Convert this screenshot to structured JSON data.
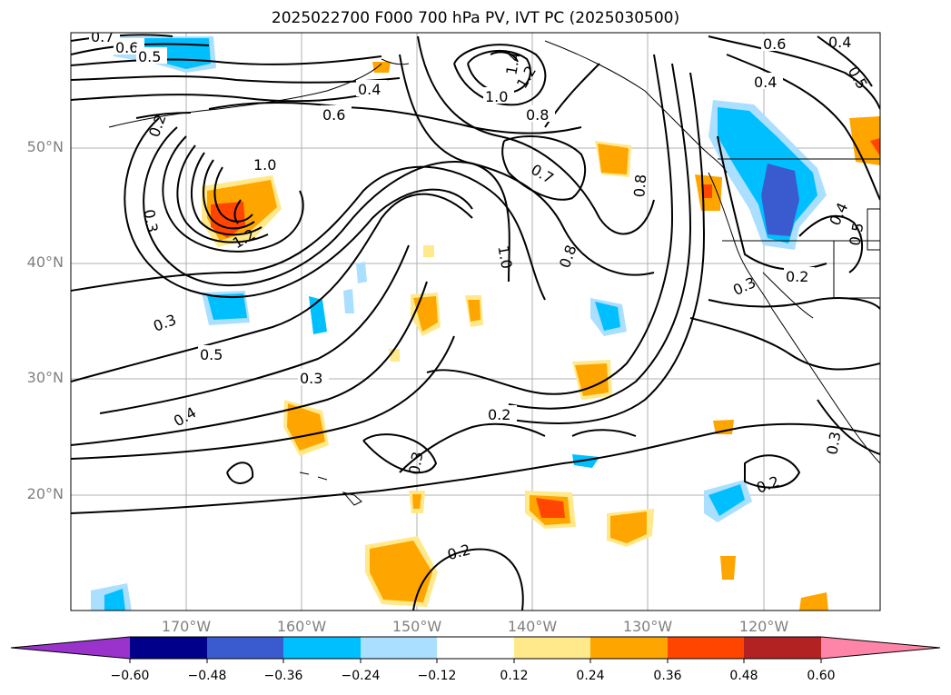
{
  "title": "2025022700 F000 700 hPa PV, IVT PC (2025030500)",
  "lat_labels": [
    "50°N",
    "40°N",
    "30°N",
    "20°N"
  ],
  "lon_labels": [
    "170°W",
    "160°W",
    "150°W",
    "140°W",
    "130°W",
    "120°W"
  ],
  "contour_labels": [
    "0.7",
    "0.6",
    "0.5",
    "0.4",
    "0.2",
    "0.6",
    "1.0",
    "1.4",
    "1.2",
    "0.8",
    "0.6",
    "0.4",
    "0.4",
    "0.5",
    "0.3",
    "1.0",
    "1.2",
    "0.7",
    "0.8",
    "1.0",
    "0.8",
    "0.4",
    "0.5",
    "0.5",
    "0.3",
    "0.3",
    "0.2",
    "0.4",
    "0.3",
    "0.2",
    "0.3",
    "0.2",
    "0.3",
    "0.2"
  ],
  "colorbar": {
    "ticks": [
      "−0.60",
      "−0.48",
      "−0.36",
      "−0.24",
      "−0.12",
      "0.12",
      "0.24",
      "0.36",
      "0.48",
      "0.60"
    ],
    "colors": [
      "#9933cc",
      "#00008b",
      "#3a5bd0",
      "#00bfff",
      "#aadfff",
      "#ffffff",
      "#ffe98a",
      "#ffa500",
      "#ff4500",
      "#b22222",
      "#ff85a8"
    ]
  }
}
